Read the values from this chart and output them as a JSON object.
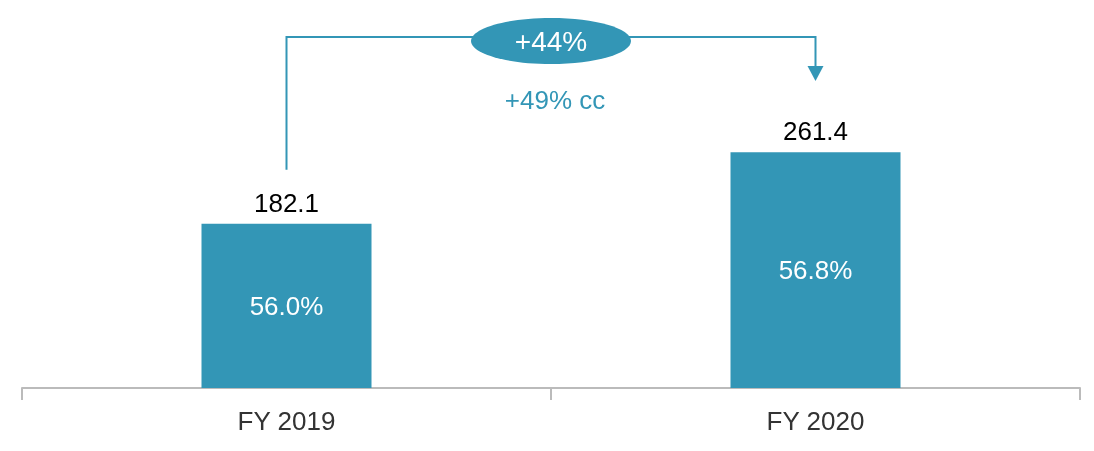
{
  "chart_data": {
    "type": "bar",
    "categories": [
      "FY 2019",
      "FY 2020"
    ],
    "values": [
      182.1,
      261.4
    ],
    "color": "#3396b6",
    "data_labels": true,
    "grid": false,
    "annotations": [
      "+44%",
      "+49% cc",
      "56.0%",
      "56.8%"
    ]
  }
}
